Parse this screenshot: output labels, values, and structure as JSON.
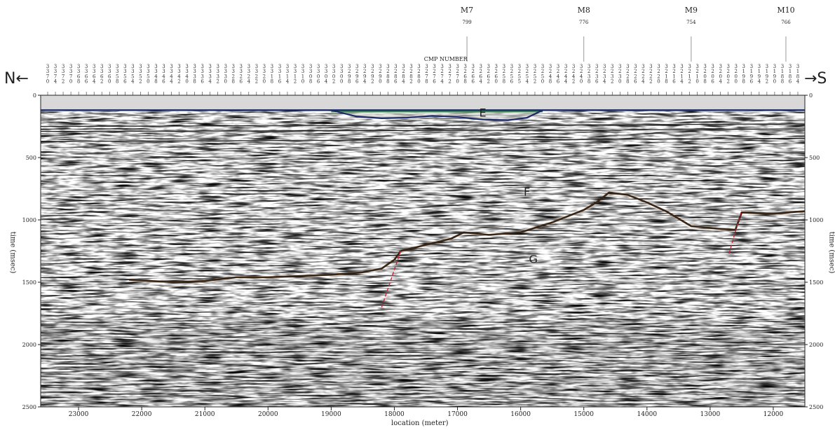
{
  "wells": [
    {
      "name": "M7",
      "value": "799",
      "location": 16850
    },
    {
      "name": "M8",
      "value": "776",
      "location": 15000
    },
    {
      "name": "M9",
      "value": "754",
      "location": 13300
    },
    {
      "name": "M10",
      "value": "766",
      "location": 11800
    }
  ],
  "direction": {
    "north": "N←",
    "south": "→S"
  },
  "cmp_title": "CMP NUMBER",
  "cmp_numbers": [
    "3370",
    "3374",
    "3372",
    "3370",
    "3368",
    "3366",
    "3364",
    "3362",
    "3360",
    "3358",
    "3356",
    "3354",
    "3352",
    "3350",
    "3348",
    "3346",
    "3344",
    "3342",
    "3340",
    "3338",
    "3336",
    "3334",
    "3332",
    "3330",
    "3328",
    "3326",
    "3324",
    "3322",
    "3320",
    "3318",
    "3316",
    "3314",
    "3312",
    "3310",
    "3308",
    "3306",
    "3304",
    "3302",
    "3300",
    "3298",
    "3296",
    "3294",
    "3292",
    "3290",
    "3288",
    "3286",
    "3284",
    "3282",
    "3280",
    "3278",
    "3276",
    "3274",
    "3272",
    "3270",
    "3268",
    "3266",
    "3264",
    "3262",
    "3260",
    "3258",
    "3256",
    "3255",
    "3254",
    "3252",
    "3250",
    "3248",
    "3246",
    "3244",
    "3242",
    "3240",
    "3238",
    "3236",
    "3234",
    "3232",
    "3230",
    "3228",
    "3226",
    "3224",
    "3222",
    "3220",
    "3218",
    "3216",
    "3214",
    "3212",
    "3210",
    "3208",
    "3206",
    "3204",
    "3202",
    "3200",
    "3198",
    "3196",
    "3194",
    "3192",
    "3190",
    "3188",
    "3186",
    "3184"
  ],
  "horizons": {
    "E": {
      "label": "E",
      "label_loc": 16600,
      "label_time": 125
    },
    "F": {
      "label": "F",
      "label_loc": 15900,
      "label_time": 760
    },
    "G": {
      "label": "G",
      "label_loc": 15800,
      "label_time": 1300
    }
  },
  "colors": {
    "background": "#ffffff",
    "water": "#d8d8d8",
    "horizon_E": "#1b2a66",
    "horizon_E_fill": "#2f9a3a",
    "horizon_G": "#3a2412",
    "fault": "#c8233a",
    "reflector": "#222222"
  },
  "chart_data": {
    "type": "seismic-section",
    "xlabel": "location (meter)",
    "ylabel": "time (msec)",
    "xlim": [
      23600,
      11500
    ],
    "ylim": [
      0,
      2500
    ],
    "x_ticks": [
      23000,
      22000,
      21000,
      20000,
      19000,
      18000,
      17000,
      16000,
      15000,
      14000,
      13000,
      12000
    ],
    "y_ticks": [
      0,
      500,
      1000,
      1500,
      2000,
      2500
    ],
    "seafloor_time": 120,
    "horizon_E": [
      [
        19000,
        120
      ],
      [
        18600,
        170
      ],
      [
        18200,
        185
      ],
      [
        17800,
        180
      ],
      [
        17400,
        165
      ],
      [
        17000,
        175
      ],
      [
        16600,
        195
      ],
      [
        16200,
        200
      ],
      [
        15900,
        180
      ],
      [
        15650,
        120
      ]
    ],
    "horizon_G": [
      [
        22200,
        1480
      ],
      [
        21500,
        1500
      ],
      [
        21000,
        1490
      ],
      [
        20500,
        1460
      ],
      [
        20000,
        1460
      ],
      [
        19500,
        1450
      ],
      [
        19000,
        1440
      ],
      [
        18500,
        1420
      ],
      [
        18200,
        1390
      ],
      [
        18000,
        1320
      ],
      [
        17900,
        1250
      ],
      [
        17500,
        1200
      ],
      [
        17100,
        1150
      ],
      [
        16900,
        1100
      ],
      [
        16500,
        1120
      ],
      [
        16000,
        1100
      ],
      [
        15500,
        1020
      ],
      [
        15000,
        920
      ],
      [
        14800,
        860
      ],
      [
        14600,
        780
      ],
      [
        14300,
        800
      ],
      [
        14000,
        860
      ],
      [
        13700,
        930
      ],
      [
        13300,
        1050
      ],
      [
        12900,
        1070
      ],
      [
        12600,
        1080
      ],
      [
        12500,
        940
      ],
      [
        12000,
        950
      ],
      [
        11500,
        930
      ]
    ],
    "faults": [
      [
        [
          18200,
          1700
        ],
        [
          17900,
          1250
        ]
      ],
      [
        [
          12700,
          1270
        ],
        [
          12500,
          920
        ]
      ]
    ],
    "reflectors": [
      [
        [
          23600,
          250
        ],
        [
          16000,
          240
        ],
        [
          11500,
          230
        ]
      ],
      [
        [
          23600,
          290
        ],
        [
          15000,
          280
        ],
        [
          11500,
          270
        ]
      ],
      [
        [
          23600,
          370
        ],
        [
          18000,
          360
        ],
        [
          15000,
          355
        ],
        [
          11500,
          345
        ]
      ]
    ],
    "grid_lines": [
      500,
      1000,
      1500,
      2000
    ]
  }
}
